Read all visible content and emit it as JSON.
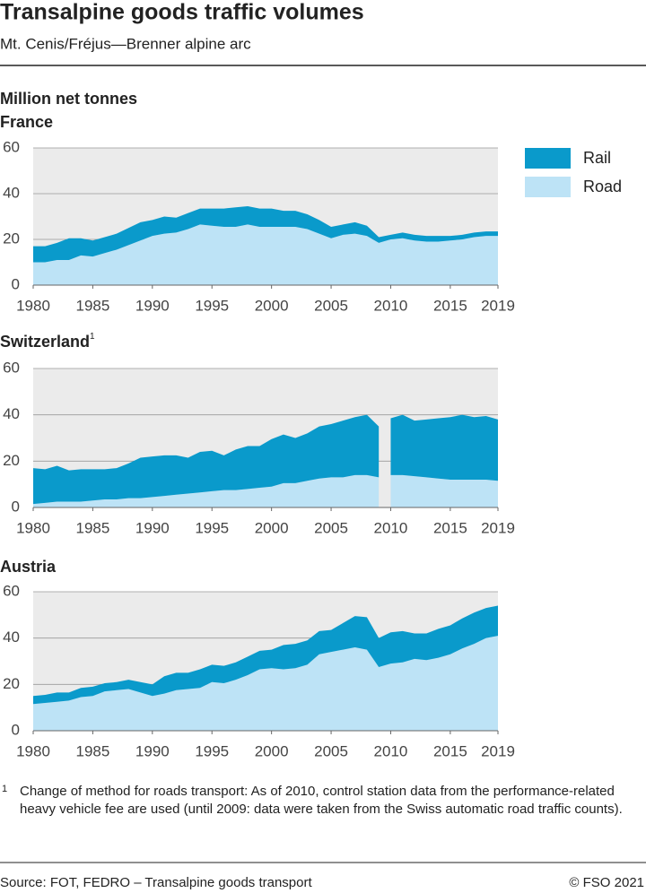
{
  "header": {
    "title": "Transalpine goods traffic volumes",
    "subtitle": "Mt. Cenis/Fréjus—Brenner alpine arc"
  },
  "unit": "Million net tonnes",
  "chart_data": [
    {
      "type": "stacked_area",
      "title": "France",
      "x": [
        1980,
        1981,
        1982,
        1983,
        1984,
        1985,
        1986,
        1987,
        1988,
        1989,
        1990,
        1991,
        1992,
        1993,
        1994,
        1995,
        1996,
        1997,
        1998,
        1999,
        2000,
        2001,
        2002,
        2003,
        2004,
        2005,
        2006,
        2007,
        2008,
        2009,
        2010,
        2011,
        2012,
        2013,
        2014,
        2015,
        2016,
        2017,
        2018,
        2019
      ],
      "series": [
        {
          "name": "Rail",
          "color": "#0a9acb",
          "values": [
            7,
            7,
            7.5,
            9.5,
            7.5,
            7,
            7,
            7,
            7.5,
            8,
            7,
            7.5,
            6.5,
            7,
            7,
            7.5,
            8,
            8.5,
            8,
            8,
            8,
            7,
            7,
            6.5,
            6,
            5,
            4.5,
            5,
            4.5,
            2.5,
            2,
            2.5,
            2.5,
            2.5,
            2.5,
            2,
            2,
            2,
            2,
            2
          ]
        },
        {
          "name": "Road",
          "color": "#bde3f6",
          "values": [
            10,
            10,
            11,
            11,
            13,
            12.5,
            14,
            15.5,
            17.5,
            19.5,
            21.5,
            22.5,
            23,
            24.5,
            26.5,
            26,
            25.5,
            25.5,
            26.5,
            25.5,
            25.5,
            25.5,
            25.5,
            24.5,
            22.5,
            20.5,
            22,
            22.5,
            21.5,
            18.5,
            20,
            20.5,
            19.5,
            19,
            19,
            19.5,
            20,
            21,
            21.5,
            21.5
          ]
        }
      ],
      "xlim": [
        1980,
        2019
      ],
      "xticks": [
        1980,
        1985,
        1990,
        1995,
        2000,
        2005,
        2010,
        2015,
        2019
      ],
      "ylim": [
        0,
        60
      ],
      "yticks": [
        0,
        20,
        40,
        60
      ],
      "grid": true,
      "legend": "right"
    },
    {
      "type": "stacked_area",
      "title": "Switzerland",
      "title_note": "1",
      "break_between": [
        2009,
        2010
      ],
      "x": [
        1980,
        1981,
        1982,
        1983,
        1984,
        1985,
        1986,
        1987,
        1988,
        1989,
        1990,
        1991,
        1992,
        1993,
        1994,
        1995,
        1996,
        1997,
        1998,
        1999,
        2000,
        2001,
        2002,
        2003,
        2004,
        2005,
        2006,
        2007,
        2008,
        2009,
        2010,
        2011,
        2012,
        2013,
        2014,
        2015,
        2016,
        2017,
        2018,
        2019
      ],
      "series": [
        {
          "name": "Rail",
          "color": "#0a9acb",
          "values": [
            15.5,
            14.5,
            15.5,
            13.5,
            14,
            13.5,
            13,
            13.5,
            15,
            17.5,
            17.5,
            17.5,
            17,
            15.5,
            17.5,
            17.5,
            15,
            17.5,
            18.5,
            18,
            20.5,
            21,
            19.5,
            20.5,
            22.5,
            23,
            24.5,
            25,
            26,
            22,
            24.5,
            26,
            24,
            25,
            26,
            27,
            28,
            27,
            27.5,
            26.5
          ]
        },
        {
          "name": "Road",
          "color": "#bde3f6",
          "values": [
            1.5,
            2,
            2.5,
            2.5,
            2.5,
            3,
            3.5,
            3.5,
            4,
            4,
            4.5,
            5,
            5.5,
            6,
            6.5,
            7,
            7.5,
            7.5,
            8,
            8.5,
            9,
            10.5,
            10.5,
            11.5,
            12.5,
            13,
            13,
            14,
            14,
            13,
            14,
            14,
            13.5,
            13,
            12.5,
            12,
            12,
            12,
            12,
            11.5
          ]
        }
      ],
      "xlim": [
        1980,
        2019
      ],
      "xticks": [
        1980,
        1985,
        1990,
        1995,
        2000,
        2005,
        2010,
        2015,
        2019
      ],
      "ylim": [
        0,
        60
      ],
      "yticks": [
        0,
        20,
        40,
        60
      ],
      "grid": true
    },
    {
      "type": "stacked_area",
      "title": "Austria",
      "x": [
        1980,
        1981,
        1982,
        1983,
        1984,
        1985,
        1986,
        1987,
        1988,
        1989,
        1990,
        1991,
        1992,
        1993,
        1994,
        1995,
        1996,
        1997,
        1998,
        1999,
        2000,
        2001,
        2002,
        2003,
        2004,
        2005,
        2006,
        2007,
        2008,
        2009,
        2010,
        2011,
        2012,
        2013,
        2014,
        2015,
        2016,
        2017,
        2018,
        2019
      ],
      "series": [
        {
          "name": "Rail",
          "color": "#0a9acb",
          "values": [
            3.5,
            3.5,
            4,
            3.5,
            4,
            4,
            3.5,
            3.5,
            4,
            4.5,
            5,
            7.5,
            7.5,
            7,
            8,
            7.5,
            7.5,
            7.5,
            8,
            8,
            8,
            10.5,
            10.5,
            10.5,
            10,
            9.5,
            11.5,
            13.5,
            14,
            12.5,
            13.5,
            13.5,
            11,
            11.5,
            12.5,
            12.5,
            13,
            13.5,
            13,
            13
          ]
        },
        {
          "name": "Road",
          "color": "#bde3f6",
          "values": [
            11.5,
            12,
            12.5,
            13,
            14.5,
            15,
            17,
            17.5,
            18,
            16.5,
            15,
            16,
            17.5,
            18,
            18.5,
            21,
            20.5,
            22,
            24,
            26.5,
            27,
            26.5,
            27,
            28.5,
            33,
            34,
            35,
            36,
            35,
            27.5,
            29,
            29.5,
            31,
            30.5,
            31.5,
            33,
            35.5,
            37.5,
            40,
            41
          ]
        }
      ],
      "xlim": [
        1980,
        2019
      ],
      "xticks": [
        1980,
        1985,
        1990,
        1995,
        2000,
        2005,
        2010,
        2015,
        2019
      ],
      "ylim": [
        0,
        60
      ],
      "yticks": [
        0,
        20,
        40,
        60
      ],
      "grid": true
    }
  ],
  "footnote": {
    "mark": "1",
    "text": "Change of method for roads transport: As of 2010, control station data from the performance-related heavy vehicle fee are used (until 2009: data were taken from the Swiss automatic road traffic counts)."
  },
  "source": "Source: FOT, FEDRO – Transalpine goods transport",
  "credit": "© FSO 2021"
}
